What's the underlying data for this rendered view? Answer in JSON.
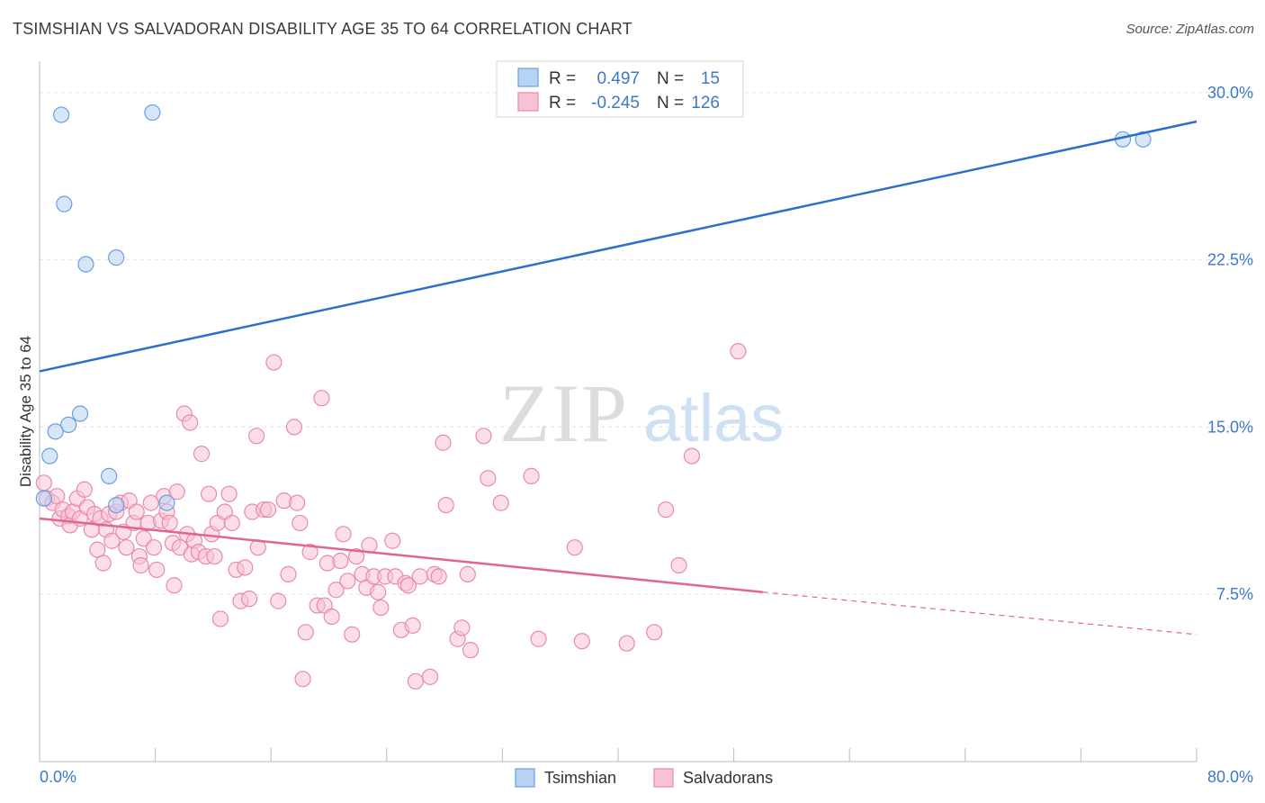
{
  "title": "TSIMSHIAN VS SALVADORAN DISABILITY AGE 35 TO 64 CORRELATION CHART",
  "source": "Source: ZipAtlas.com",
  "watermark": {
    "zip": "ZIP",
    "atlas": "atlas"
  },
  "colors": {
    "blue_fill": "#b8d3f2",
    "blue_stroke": "#6a9fde",
    "blue_line": "#2f6fcc",
    "pink_fill": "#f7c3d4",
    "pink_stroke": "#e98aab",
    "pink_line": "#e0668f",
    "grid": "#e3e3e3",
    "tick_text": "#3d78c9"
  },
  "legend": {
    "rows": [
      {
        "r_label": "R =",
        "r_value": "0.497",
        "n_label": "N =",
        "n_value": "15"
      },
      {
        "r_label": "R =",
        "r_value": "-0.245",
        "n_label": "N =",
        "n_value": "126"
      }
    ]
  },
  "bottom_legend": [
    "Tsimshian",
    "Salvadorans"
  ],
  "chart_data": {
    "type": "scatter",
    "title": "TSIMSHIAN VS SALVADORAN DISABILITY AGE 35 TO 64 CORRELATION CHART",
    "xlabel": "",
    "ylabel": "Disability Age 35 to 64",
    "xlim": [
      0,
      80
    ],
    "ylim": [
      0,
      31
    ],
    "x_tick_labels": [
      "0.0%",
      "80.0%"
    ],
    "y_ticks": [
      7.5,
      15.0,
      22.5,
      30.0
    ],
    "y_tick_labels": [
      "7.5%",
      "15.0%",
      "22.5%",
      "30.0%"
    ],
    "grid": true,
    "series": [
      {
        "name": "Tsimshian",
        "points": [
          [
            1.5,
            29.0
          ],
          [
            7.8,
            29.1
          ],
          [
            1.7,
            25.0
          ],
          [
            3.2,
            22.3
          ],
          [
            5.3,
            22.6
          ],
          [
            2.0,
            15.1
          ],
          [
            2.8,
            15.6
          ],
          [
            1.1,
            14.8
          ],
          [
            0.7,
            13.7
          ],
          [
            4.8,
            12.8
          ],
          [
            5.3,
            11.5
          ],
          [
            8.8,
            11.6
          ],
          [
            0.3,
            11.8
          ],
          [
            74.9,
            27.9
          ],
          [
            76.3,
            27.9
          ]
        ],
        "trend": {
          "x": [
            0,
            80
          ],
          "y": [
            17.5,
            28.7
          ]
        }
      },
      {
        "name": "Salvadorans",
        "points": [
          [
            0.3,
            12.5
          ],
          [
            0.5,
            11.8
          ],
          [
            0.9,
            11.6
          ],
          [
            1.2,
            11.9
          ],
          [
            1.4,
            10.9
          ],
          [
            1.6,
            11.3
          ],
          [
            2.0,
            11.0
          ],
          [
            2.1,
            10.6
          ],
          [
            2.3,
            11.2
          ],
          [
            2.6,
            11.8
          ],
          [
            2.8,
            10.9
          ],
          [
            3.1,
            12.2
          ],
          [
            3.3,
            11.4
          ],
          [
            3.6,
            10.4
          ],
          [
            3.8,
            11.1
          ],
          [
            4.0,
            9.5
          ],
          [
            4.2,
            10.9
          ],
          [
            4.4,
            8.9
          ],
          [
            4.6,
            10.4
          ],
          [
            4.8,
            11.1
          ],
          [
            5.0,
            9.9
          ],
          [
            5.3,
            11.2
          ],
          [
            5.6,
            11.6
          ],
          [
            5.8,
            10.3
          ],
          [
            6.0,
            9.6
          ],
          [
            6.2,
            11.7
          ],
          [
            6.5,
            10.7
          ],
          [
            6.7,
            11.2
          ],
          [
            6.9,
            9.2
          ],
          [
            7.0,
            8.8
          ],
          [
            7.2,
            10.0
          ],
          [
            7.5,
            10.7
          ],
          [
            7.7,
            11.6
          ],
          [
            7.9,
            9.6
          ],
          [
            8.1,
            8.6
          ],
          [
            8.4,
            10.8
          ],
          [
            8.6,
            11.9
          ],
          [
            8.8,
            11.2
          ],
          [
            9.0,
            10.7
          ],
          [
            9.2,
            9.8
          ],
          [
            9.3,
            7.9
          ],
          [
            9.5,
            12.1
          ],
          [
            9.7,
            9.6
          ],
          [
            10.0,
            15.6
          ],
          [
            10.2,
            10.2
          ],
          [
            10.4,
            15.2
          ],
          [
            10.5,
            9.3
          ],
          [
            10.7,
            9.9
          ],
          [
            11.0,
            9.4
          ],
          [
            11.2,
            13.8
          ],
          [
            11.5,
            9.2
          ],
          [
            11.7,
            12.0
          ],
          [
            11.9,
            10.2
          ],
          [
            12.1,
            9.2
          ],
          [
            12.3,
            10.7
          ],
          [
            12.5,
            6.4
          ],
          [
            12.8,
            11.2
          ],
          [
            13.1,
            12.0
          ],
          [
            13.3,
            10.7
          ],
          [
            13.6,
            8.6
          ],
          [
            13.9,
            7.2
          ],
          [
            14.2,
            8.7
          ],
          [
            14.5,
            7.3
          ],
          [
            14.7,
            11.2
          ],
          [
            15.0,
            14.6
          ],
          [
            15.1,
            9.6
          ],
          [
            15.5,
            11.3
          ],
          [
            15.8,
            11.3
          ],
          [
            16.2,
            17.9
          ],
          [
            16.5,
            7.2
          ],
          [
            16.9,
            11.7
          ],
          [
            17.2,
            8.4
          ],
          [
            17.6,
            15.0
          ],
          [
            17.8,
            11.6
          ],
          [
            18.0,
            10.7
          ],
          [
            18.2,
            3.7
          ],
          [
            18.4,
            5.8
          ],
          [
            18.7,
            9.4
          ],
          [
            19.2,
            7.0
          ],
          [
            19.5,
            16.3
          ],
          [
            19.7,
            7.0
          ],
          [
            19.9,
            8.9
          ],
          [
            20.2,
            6.5
          ],
          [
            20.5,
            7.7
          ],
          [
            20.8,
            9.0
          ],
          [
            21.0,
            10.2
          ],
          [
            21.3,
            8.1
          ],
          [
            21.6,
            5.7
          ],
          [
            21.9,
            9.2
          ],
          [
            22.3,
            8.4
          ],
          [
            22.6,
            7.8
          ],
          [
            22.8,
            9.7
          ],
          [
            23.1,
            8.3
          ],
          [
            23.4,
            7.6
          ],
          [
            23.6,
            6.9
          ],
          [
            23.9,
            8.3
          ],
          [
            24.4,
            9.9
          ],
          [
            24.6,
            8.3
          ],
          [
            25.0,
            5.9
          ],
          [
            25.3,
            8.0
          ],
          [
            25.5,
            7.9
          ],
          [
            25.8,
            6.1
          ],
          [
            26.0,
            3.6
          ],
          [
            26.3,
            8.3
          ],
          [
            27.0,
            3.8
          ],
          [
            27.3,
            8.4
          ],
          [
            27.6,
            8.3
          ],
          [
            27.9,
            14.3
          ],
          [
            28.1,
            11.5
          ],
          [
            28.9,
            5.5
          ],
          [
            29.2,
            6.0
          ],
          [
            29.6,
            8.4
          ],
          [
            29.8,
            5.0
          ],
          [
            30.7,
            14.6
          ],
          [
            31.0,
            12.7
          ],
          [
            31.9,
            11.6
          ],
          [
            34.0,
            12.8
          ],
          [
            34.5,
            5.5
          ],
          [
            37.0,
            9.6
          ],
          [
            37.5,
            5.4
          ],
          [
            40.6,
            5.3
          ],
          [
            42.5,
            5.8
          ],
          [
            43.3,
            11.3
          ],
          [
            44.2,
            8.8
          ],
          [
            45.1,
            13.7
          ],
          [
            48.3,
            18.4
          ]
        ],
        "trend": {
          "x": [
            0,
            50
          ],
          "y": [
            10.9,
            7.6
          ]
        },
        "trend_dashed": {
          "x": [
            50,
            80
          ],
          "y": [
            7.6,
            5.7
          ]
        }
      }
    ]
  }
}
